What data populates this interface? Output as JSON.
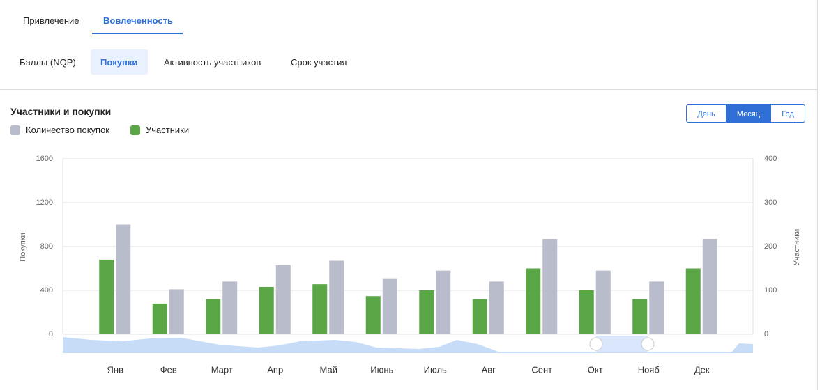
{
  "tabs": [
    "Привлечение",
    "Вовлеченность"
  ],
  "subtabs": [
    "Баллы (NQP)",
    "Покупки",
    "Активность участников",
    "Срок участия"
  ],
  "period_buttons": [
    "День",
    "Месяц",
    "Год"
  ],
  "chart_data": {
    "type": "bar",
    "title": "Участники и покупки",
    "y_label": "Покупки",
    "y2_label": "Участники",
    "categories": [
      "Янв",
      "Фев",
      "Март",
      "Апр",
      "Май",
      "Июнь",
      "Июль",
      "Авг",
      "Сент",
      "Окт",
      "Нояб",
      "Дек"
    ],
    "series": [
      {
        "name": "Количество покупок",
        "color": "#b8bccb",
        "values": [
          1000,
          410,
          480,
          630,
          670,
          510,
          580,
          480,
          870,
          580,
          480,
          870
        ]
      },
      {
        "name": "Участники",
        "color": "#5aa646",
        "axis": "y2",
        "values": [
          170,
          70,
          80,
          108,
          114,
          87,
          100,
          80,
          150,
          100,
          80,
          150
        ]
      }
    ],
    "ylim": [
      0,
      1600
    ],
    "yticks": [
      0,
      400,
      800,
      1200,
      1600
    ],
    "y2lim": [
      0,
      400
    ],
    "y2ticks": [
      0,
      100,
      200,
      300,
      400
    ],
    "grid": true
  }
}
